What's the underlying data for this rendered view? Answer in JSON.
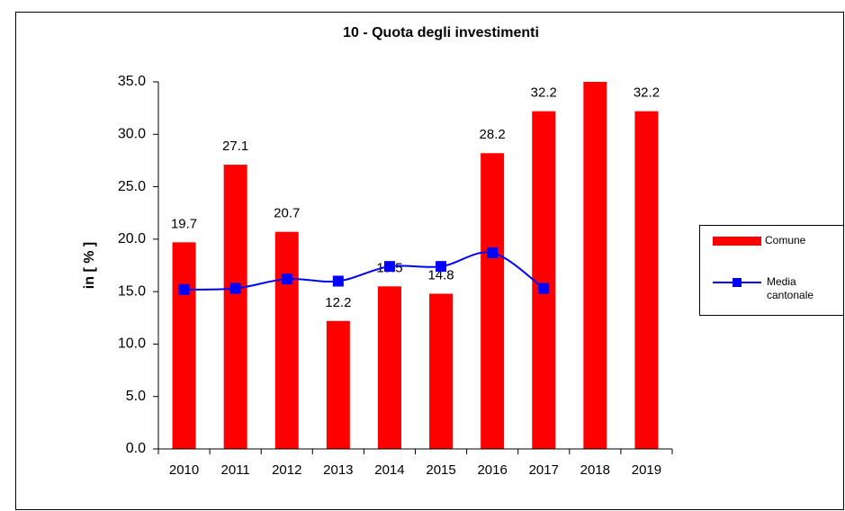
{
  "chart_data": {
    "type": "bar",
    "title": "10 - Quota degli investimenti",
    "y_label": "in [ % ]",
    "categories": [
      "2010",
      "2011",
      "2012",
      "2013",
      "2014",
      "2015",
      "2016",
      "2017",
      "2018",
      "2019"
    ],
    "series": [
      {
        "name": "Comune",
        "type": "bar",
        "color": "#ff0000",
        "values": [
          19.7,
          27.1,
          20.7,
          12.2,
          15.5,
          14.8,
          28.2,
          32.2,
          35,
          32.2
        ],
        "value_labels": [
          "19.7",
          "27.1",
          "20.7",
          "12.2",
          "15.5",
          "14.8",
          "28.2",
          "32.2",
          null,
          "32.2"
        ]
      },
      {
        "name": "Media cantonale",
        "type": "line",
        "color": "#0000ff",
        "values": [
          15.2,
          15.3,
          16.2,
          16.0,
          17.4,
          17.4,
          18.7,
          15.3,
          null,
          null
        ]
      }
    ],
    "ylim": [
      0,
      35
    ],
    "yticks": [
      {
        "value": 0,
        "label": "0.0"
      },
      {
        "value": 5,
        "label": "5.0"
      },
      {
        "value": 10,
        "label": "10.0"
      },
      {
        "value": 15,
        "label": "15.0"
      },
      {
        "value": 20,
        "label": "20.0"
      },
      {
        "value": 25,
        "label": "25.0"
      },
      {
        "value": 30,
        "label": "30.0"
      },
      {
        "value": 35,
        "label": "35.0"
      }
    ],
    "legend": "right"
  }
}
